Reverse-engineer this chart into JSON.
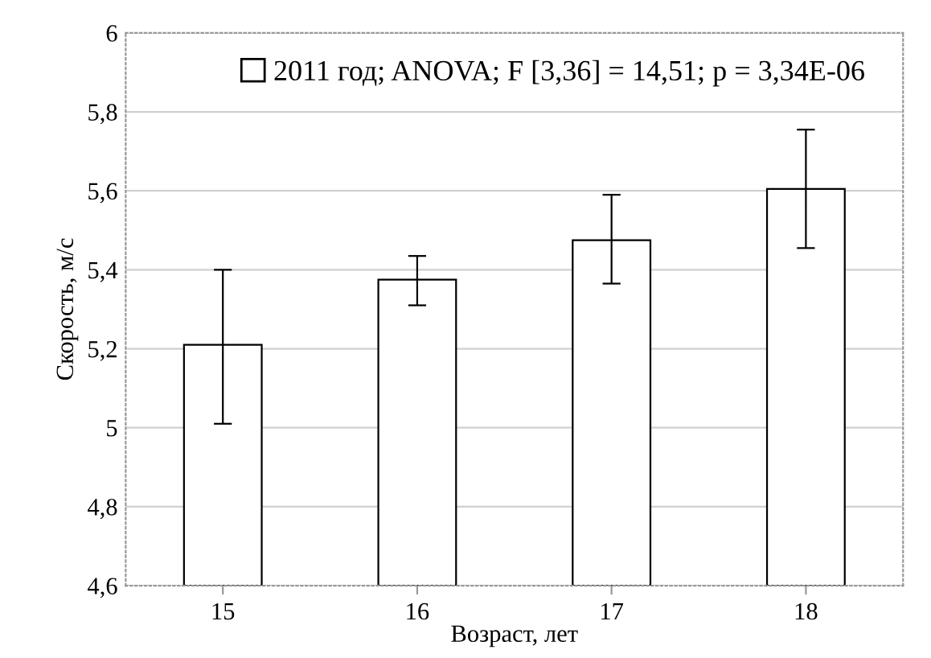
{
  "chart_data": {
    "type": "bar",
    "xlabel": "Возраст, лет",
    "ylabel": "Скорость, м/с",
    "categories": [
      "15",
      "16",
      "17",
      "18"
    ],
    "series": [
      {
        "name": "2011 год; ANOVA; F [3,36] = 14,51; p = 3,34E-06",
        "color": "#ffffff",
        "values": [
          5.21,
          5.375,
          5.475,
          5.605
        ],
        "errors": [
          [
            5.01,
            5.4
          ],
          [
            5.31,
            5.435
          ],
          [
            5.365,
            5.59
          ],
          [
            5.455,
            5.755
          ]
        ]
      }
    ],
    "ylim": [
      4.6,
      6
    ],
    "yticks": [
      {
        "value": 4.6,
        "label": "4,6"
      },
      {
        "value": 4.8,
        "label": "4,8"
      },
      5,
      {
        "value": 5.2,
        "label": "5,2"
      },
      {
        "value": 5.4,
        "label": "5,4"
      },
      {
        "value": 5.6,
        "label": "5,6"
      },
      {
        "value": 5.8,
        "label": "5,8"
      },
      6
    ],
    "grid": "y",
    "legend": "top"
  }
}
